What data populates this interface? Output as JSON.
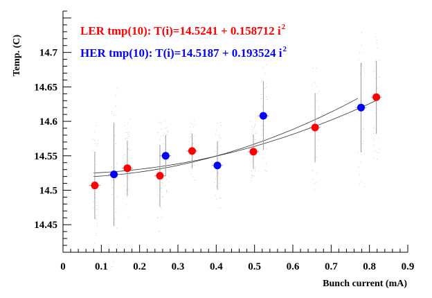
{
  "chart_data": {
    "type": "scatter",
    "title": "",
    "xlabel": "Bunch current (mA)",
    "ylabel": "Temp. (C)",
    "xlim": [
      0,
      0.9
    ],
    "ylim": [
      14.41,
      14.76
    ],
    "x_ticks": [
      "0",
      "0.1",
      "0.2",
      "0.3",
      "0.4",
      "0.5",
      "0.6",
      "0.7",
      "0.8",
      "0.9"
    ],
    "y_ticks": [
      "14.45",
      "14.5",
      "14.55",
      "14.6",
      "14.65",
      "14.7"
    ],
    "grid": false,
    "legend_position": "top-left",
    "series": [
      {
        "name": "LER tmp(10): T(i)=14.5241 + 0.158712 i",
        "superscript": "2",
        "color": "#ff0000",
        "fit": {
          "a": 14.5241,
          "b": 0.158712,
          "x_range": [
            0.08,
            0.82
          ]
        },
        "points": [
          {
            "x": 0.083,
            "y": 14.507,
            "err": 0.049
          },
          {
            "x": 0.168,
            "y": 14.532,
            "err": 0.04
          },
          {
            "x": 0.253,
            "y": 14.521,
            "err": 0.045
          },
          {
            "x": 0.337,
            "y": 14.557,
            "err": 0.025
          },
          {
            "x": 0.497,
            "y": 14.556,
            "err": 0.025
          },
          {
            "x": 0.658,
            "y": 14.591,
            "err": 0.05
          },
          {
            "x": 0.818,
            "y": 14.635,
            "err": 0.053
          }
        ]
      },
      {
        "name": "HER tmp(10): T(i)=14.5187 + 0.193524 i",
        "superscript": "2",
        "color": "#0000ff",
        "fit": {
          "a": 14.5187,
          "b": 0.193524,
          "x_range": [
            0.08,
            0.77
          ]
        },
        "points": [
          {
            "x": 0.133,
            "y": 14.523,
            "err": 0.075
          },
          {
            "x": 0.268,
            "y": 14.55,
            "err": 0.03
          },
          {
            "x": 0.403,
            "y": 14.536,
            "err": 0.035
          },
          {
            "x": 0.523,
            "y": 14.608,
            "err": 0.05
          },
          {
            "x": 0.778,
            "y": 14.62,
            "err": 0.065
          }
        ]
      }
    ]
  }
}
